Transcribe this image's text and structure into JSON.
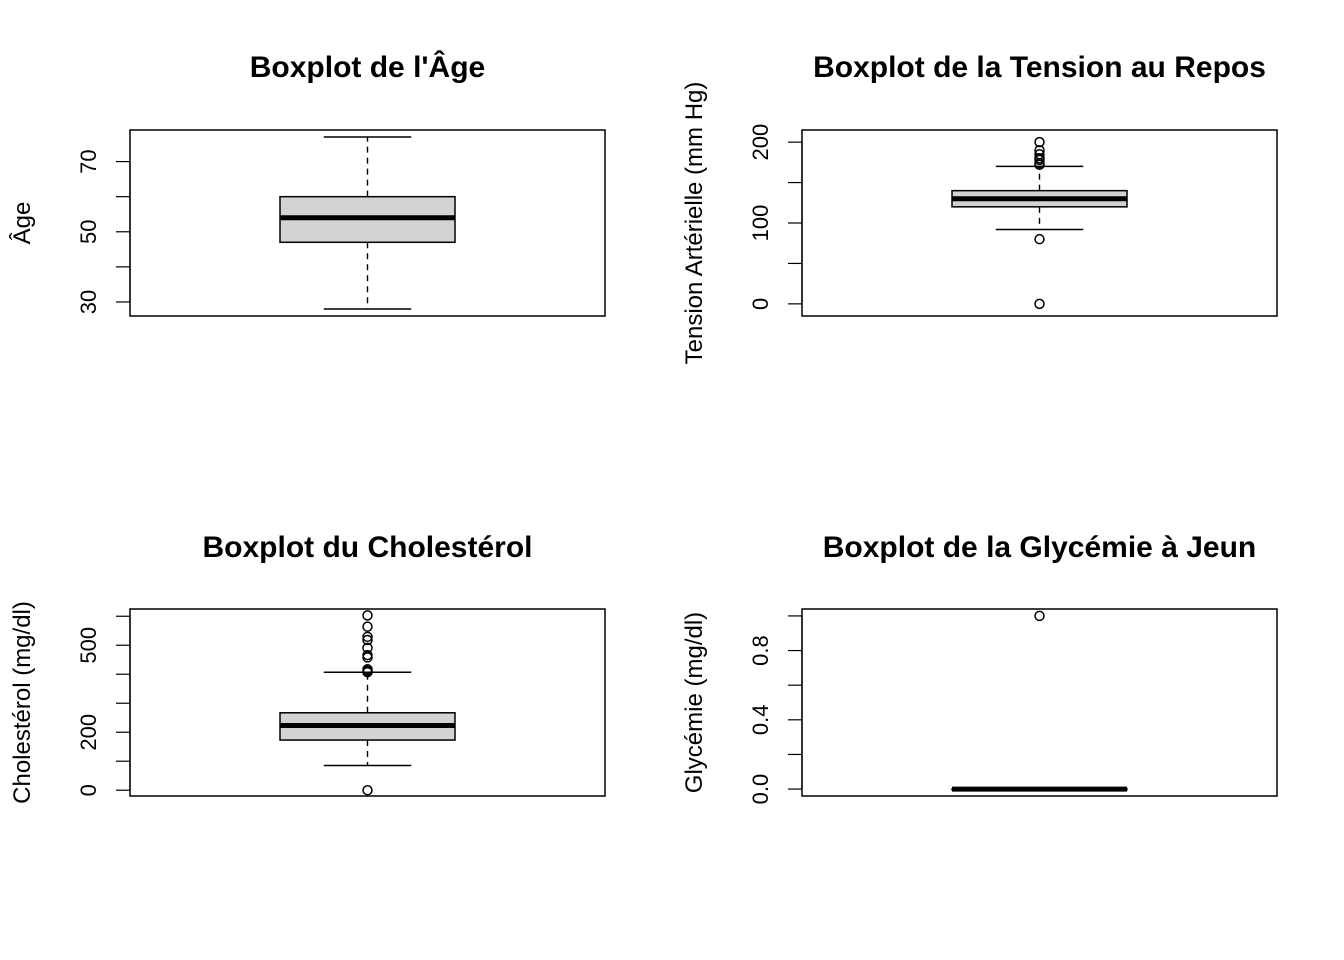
{
  "chart_data": [
    {
      "type": "boxplot",
      "title": "Boxplot de l'Âge",
      "xlabel": "",
      "ylabel": "Âge",
      "ylim": [
        26,
        79
      ],
      "yticks": [
        30,
        40,
        50,
        60,
        70
      ],
      "ytick_labels": [
        "30",
        "",
        "50",
        "",
        "70"
      ],
      "fill_color": "#d3d3d3",
      "box": {
        "whisker_low": 28,
        "q1": 47,
        "median": 54,
        "q3": 60,
        "whisker_high": 77
      },
      "outliers": []
    },
    {
      "type": "boxplot",
      "title": "Boxplot de la Tension au Repos",
      "xlabel": "",
      "ylabel": "Tension Artérielle (mm Hg)",
      "ylim": [
        -15,
        215
      ],
      "yticks": [
        0,
        50,
        100,
        150,
        200
      ],
      "ytick_labels": [
        "0",
        "",
        "100",
        "",
        "200"
      ],
      "fill_color": "#d3d3d3",
      "box": {
        "whisker_low": 92,
        "q1": 120,
        "median": 130,
        "q3": 140,
        "whisker_high": 170
      },
      "outliers": [
        0,
        80,
        172,
        174,
        178,
        180,
        185,
        190,
        200
      ]
    },
    {
      "type": "boxplot",
      "title": "Boxplot du Cholestérol",
      "xlabel": "",
      "ylabel": "Cholestérol (mg/dl)",
      "ylim": [
        -20,
        625
      ],
      "yticks": [
        0,
        100,
        200,
        300,
        400,
        500,
        600
      ],
      "ytick_labels": [
        "0",
        "",
        "200",
        "",
        "",
        "500",
        ""
      ],
      "fill_color": "#d3d3d3",
      "box": {
        "whisker_low": 85,
        "q1": 173,
        "median": 223,
        "q3": 267,
        "whisker_high": 407
      },
      "outliers": [
        0,
        407,
        409,
        412,
        417,
        458,
        466,
        491,
        518,
        529,
        564,
        603
      ]
    },
    {
      "type": "boxplot",
      "title": "Boxplot de la Glycémie à Jeun",
      "xlabel": "",
      "ylabel": "Glycémie (mg/dl)",
      "ylim": [
        -0.04,
        1.04
      ],
      "yticks": [
        0,
        0.2,
        0.4,
        0.6,
        0.8,
        1.0
      ],
      "ytick_labels": [
        "0.0",
        "",
        "0.4",
        "",
        "0.8",
        ""
      ],
      "fill_color": "#d3d3d3",
      "box": {
        "whisker_low": 0,
        "q1": 0,
        "median": 0,
        "q3": 0,
        "whisker_high": 0
      },
      "outliers": [
        1
      ]
    }
  ]
}
